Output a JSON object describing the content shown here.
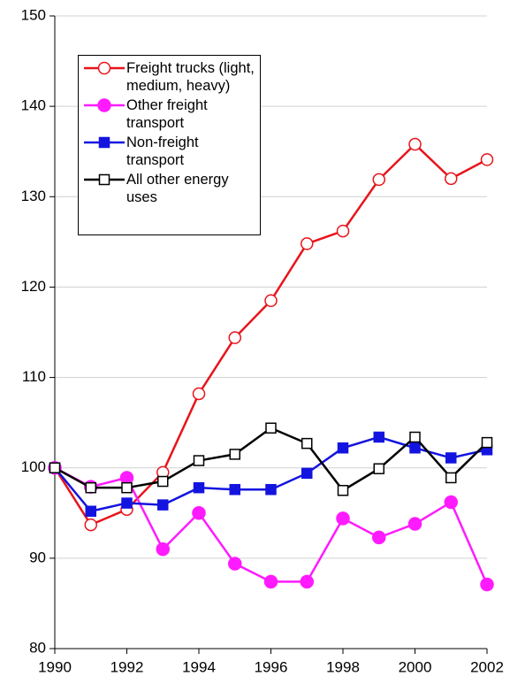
{
  "chart_data": {
    "type": "line",
    "x": [
      1990,
      1991,
      1992,
      1993,
      1994,
      1995,
      1996,
      1997,
      1998,
      1999,
      2000,
      2001,
      2002
    ],
    "series": [
      {
        "name": "Freight trucks (light, medium, heavy)",
        "color": "#e8141b",
        "marker": "circle",
        "filled": false,
        "values": [
          100,
          93.7,
          95.4,
          99.5,
          108.2,
          114.4,
          118.5,
          124.8,
          126.2,
          131.9,
          135.8,
          132,
          134.1
        ]
      },
      {
        "name": "Other freight transport",
        "color": "#ff1aff",
        "marker": "circle",
        "filled": true,
        "values": [
          100,
          97.9,
          98.9,
          91,
          95,
          89.4,
          87.4,
          87.4,
          94.4,
          92.3,
          93.8,
          96.2,
          87.1
        ]
      },
      {
        "name": "Non-freight transport",
        "color": "#1414e0",
        "marker": "square",
        "filled": true,
        "values": [
          100,
          95.2,
          96.1,
          95.9,
          97.8,
          97.6,
          97.6,
          99.4,
          102.2,
          103.4,
          102.2,
          101.1,
          102
        ]
      },
      {
        "name": "All other energy uses",
        "color": "#000000",
        "marker": "square",
        "filled": false,
        "values": [
          100,
          97.8,
          97.8,
          98.5,
          100.8,
          101.5,
          104.4,
          102.7,
          97.5,
          99.9,
          103.4,
          98.9,
          102.8
        ]
      }
    ],
    "xlim": [
      1990,
      2002
    ],
    "xticks": [
      1990,
      1992,
      1994,
      1996,
      1998,
      2000,
      2002
    ],
    "ylim": [
      80,
      150
    ],
    "yticks": [
      80,
      90,
      100,
      110,
      120,
      130,
      140,
      150
    ],
    "grid": true,
    "legend": "upper left"
  }
}
